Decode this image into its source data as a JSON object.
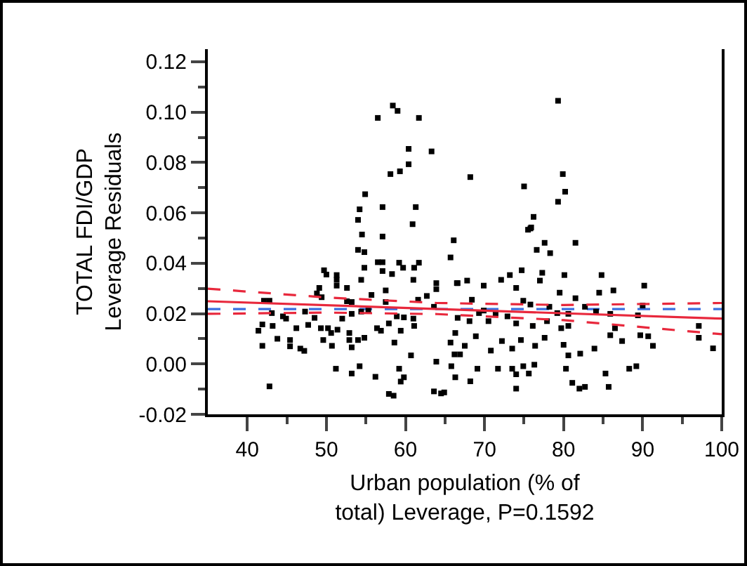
{
  "chart_data": {
    "type": "scatter",
    "xlabel": "Urban population (% of total) Leverage, P=0.1592",
    "ylabel": "TOTAL FDI/GDP Leverage Residuals",
    "xlim": [
      35,
      100
    ],
    "xticks": [
      40,
      50,
      60,
      70,
      80,
      90,
      100
    ],
    "ylim": [
      -0.02,
      0.125
    ],
    "yticks": [
      {
        "value": -0.02,
        "label": "-0.02"
      },
      {
        "value": 0,
        "label": "0.00"
      },
      {
        "value": 0.02,
        "label": "0.02"
      },
      {
        "value": 0.04,
        "label": "0.04"
      },
      {
        "value": 0.06,
        "label": "0.06"
      },
      {
        "value": 0.08,
        "label": "0.08"
      },
      {
        "value": 0.1,
        "label": "0.10"
      },
      {
        "value": 0.12,
        "label": "0.12"
      }
    ],
    "grid": false,
    "marker": "square",
    "ref_lines": [
      {
        "axis": "y",
        "value": 0.0218,
        "color": "#3a6fe0",
        "line_style": "dashed"
      }
    ],
    "series": [
      {
        "color": "#000000",
        "x": [
          58.4,
          59.0,
          56.5,
          61.7,
          60.4,
          63.3,
          60.4,
          59.3,
          58.1,
          54.9,
          54.2,
          57.1,
          61.3,
          54.0,
          60.9,
          54.5,
          57.1,
          79.3,
          68.2,
          79.9,
          75.0,
          80.2,
          79.3,
          76.2,
          75.9,
          75.5,
          54.0,
          54.8,
          49.7,
          50.0,
          51.3,
          51.3,
          51.3,
          52.6,
          54.4,
          54.8,
          56.5,
          57.1,
          57.1,
          58.3,
          59.2,
          59.7,
          61.1,
          61.7,
          61.0,
          63.9,
          63.9,
          65.7,
          66.5,
          66.1,
          49.1,
          48.8,
          49.4,
          42.1,
          42.8,
          52.6,
          53.2,
          55.7,
          57.5,
          57.5,
          61.6,
          62.7,
          63.6,
          43.1,
          44.5,
          41.4,
          41.9,
          43.2,
          44.9,
          46.2,
          47.3,
          47.7,
          48.5,
          49.3,
          50.2,
          50.6,
          51.4,
          52.0,
          53.2,
          54.4,
          55.3,
          56.4,
          56.9,
          57.9,
          58.9,
          59.8,
          61.0,
          61.1,
          59.4,
          43.8,
          41.9,
          45.4,
          45.4,
          46.7,
          47.2,
          49.6,
          50.7,
          52.9,
          52.9,
          53.2,
          54.0,
          54.8,
          58.6,
          60.7,
          51.2,
          53.2,
          54.2,
          56.2,
          57.9,
          58.5,
          59.2,
          59.8,
          59.4,
          63.9,
          63.6,
          64.5,
          64.9,
          42.8,
          65.7,
          66.2,
          75.8,
          76.6,
          77.6,
          81.5,
          78.3,
          66.6,
          67.8,
          69.9,
          72.1,
          73.2,
          74.7,
          77.3,
          77.0,
          74.0,
          74.9,
          79.5,
          80.1,
          81.5,
          84.8,
          84.5,
          86.3,
          90.2,
          68.4,
          69.9,
          71.4,
          72.9,
          75.8,
          78.2,
          80.6,
          82.7,
          84.1,
          85.9,
          89.4,
          90.0,
          66.6,
          68.1,
          70.5,
          74.0,
          76.1,
          77.9,
          79.7,
          80.6,
          86.5,
          66.3,
          68.9,
          72.2,
          74.6,
          77.6,
          80.0,
          85.9,
          87.4,
          89.7,
          90.7,
          91.3,
          97.1,
          97.1,
          98.9,
          67.5,
          66.9,
          70.8,
          73.5,
          76.4,
          80.6,
          82.1,
          83.9,
          65.8,
          69.1,
          73.5,
          74.9,
          76.3,
          80.3,
          85.3,
          88.3,
          89.2,
          66.3,
          68.2,
          74.0,
          75.6,
          81.1,
          82.0,
          82.7,
          85.7,
          74.0,
          71.7,
          79.2,
          69.3
        ],
        "values": [
          0.1026,
          0.1005,
          0.0977,
          0.0977,
          0.0854,
          0.0844,
          0.0793,
          0.0765,
          0.0754,
          0.0674,
          0.0614,
          0.0623,
          0.0623,
          0.0572,
          0.0555,
          0.0514,
          0.0506,
          0.1045,
          0.0742,
          0.0754,
          0.0705,
          0.0684,
          0.0644,
          0.0584,
          0.0542,
          0.0533,
          0.0453,
          0.0444,
          0.0372,
          0.0355,
          0.0353,
          0.0334,
          0.0311,
          0.0302,
          0.0334,
          0.0382,
          0.0404,
          0.0404,
          0.0369,
          0.0357,
          0.0402,
          0.0382,
          0.0382,
          0.0402,
          0.0334,
          0.0321,
          0.0297,
          0.0423,
          0.0321,
          0.0491,
          0.0302,
          0.028,
          0.0265,
          0.0251,
          0.0251,
          0.0249,
          0.0246,
          0.0274,
          0.0292,
          0.0246,
          0.0255,
          0.027,
          0.0227,
          0.0202,
          0.0189,
          0.0132,
          0.0157,
          0.0151,
          0.018,
          0.0142,
          0.0208,
          0.0155,
          0.0183,
          0.0142,
          0.0142,
          0.0123,
          0.0136,
          0.018,
          0.0199,
          0.0208,
          0.0212,
          0.0142,
          0.0132,
          0.0161,
          0.0189,
          0.0185,
          0.018,
          0.0151,
          0.0132,
          0.01,
          0.0072,
          0.0095,
          0.007,
          0.0061,
          0.0052,
          0.0095,
          0.0072,
          0.0123,
          0.0095,
          0.0066,
          0.0095,
          0.0104,
          0.0085,
          0.0034,
          -0.0019,
          -0.0038,
          -0.0009,
          -0.0051,
          -0.0119,
          -0.0126,
          -0.0019,
          -0.0053,
          -0.007,
          0.0009,
          -0.0109,
          -0.0117,
          -0.0113,
          -0.0089,
          0.0085,
          0.0038,
          0.0538,
          0.0453,
          0.0481,
          0.0481,
          0.044,
          0.0321,
          0.0331,
          0.0311,
          0.0334,
          0.0353,
          0.0372,
          0.0362,
          0.0331,
          0.0302,
          0.0251,
          0.0283,
          0.0353,
          0.0261,
          0.0353,
          0.0283,
          0.0292,
          0.0311,
          0.0255,
          0.0212,
          0.0199,
          0.0189,
          0.0236,
          0.0227,
          0.0199,
          0.0227,
          0.0208,
          0.0199,
          0.0193,
          0.0232,
          0.0183,
          0.017,
          0.017,
          0.0161,
          0.0151,
          0.017,
          0.0142,
          0.0151,
          0.0142,
          0.0123,
          0.011,
          0.0091,
          0.0095,
          0.0104,
          0.0076,
          0.0114,
          0.0091,
          0.0114,
          0.011,
          0.0072,
          0.0151,
          0.0104,
          0.0062,
          0.0072,
          0.0038,
          0.0053,
          0.0061,
          0.0072,
          0.0034,
          0.0041,
          0.0061,
          -0.0009,
          -0.0019,
          -0.0019,
          -0.0009,
          -0.0003,
          -0.0019,
          -0.0038,
          -0.0019,
          -0.0009,
          -0.0053,
          -0.0069,
          -0.0041,
          -0.0038,
          -0.0075,
          -0.0098,
          -0.0091,
          -0.0091,
          -0.0098,
          -0.0019,
          0.0202,
          0.0202
        ]
      },
      {
        "type": "line",
        "color": "#e8283c",
        "line_style": "solid",
        "marker": "none",
        "x": [
          35,
          100
        ],
        "values": [
          0.0249,
          0.018
        ]
      },
      {
        "type": "line",
        "color": "#e8283c",
        "line_style": "dashed",
        "marker": "none",
        "x": [
          35,
          50,
          64,
          80,
          100
        ],
        "values": [
          0.0299,
          0.0264,
          0.0242,
          0.0234,
          0.0242
        ]
      },
      {
        "type": "line",
        "color": "#e8283c",
        "line_style": "dashed",
        "marker": "none",
        "x": [
          35,
          50,
          64,
          80,
          100
        ],
        "values": [
          0.0199,
          0.0204,
          0.0198,
          0.0174,
          0.0118
        ]
      }
    ]
  }
}
